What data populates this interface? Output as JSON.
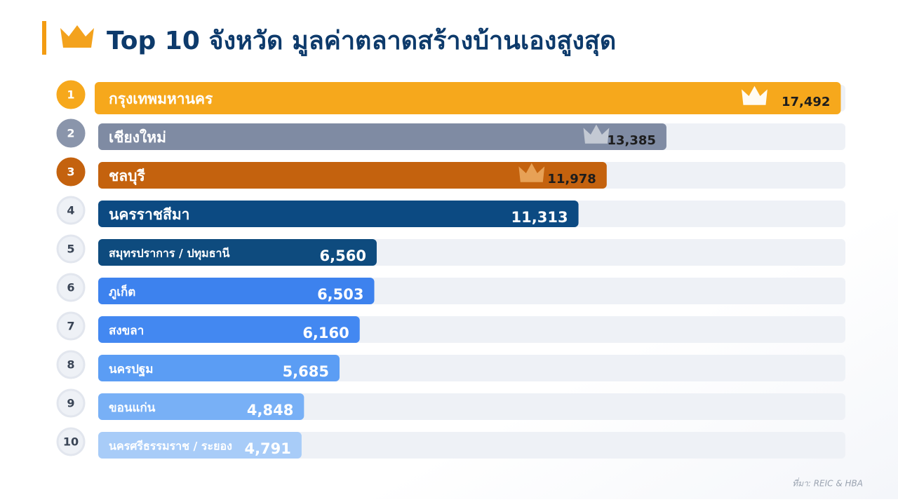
{
  "chart_data": {
    "type": "bar",
    "orientation": "horizontal",
    "title": "Top 10 จังหวัด มูลค่าตลาดสร้างบ้านเองสูงสุด",
    "ranks": [
      1,
      2,
      3,
      4,
      5,
      6,
      7,
      8,
      9,
      10
    ],
    "categories": [
      "กรุงเทพมหานคร",
      "เชียงใหม่",
      "ชลบุรี",
      "นครราชสีมา",
      "สมุทรปราการ / ปทุมธานี",
      "ภูเก็ต",
      "สงขลา",
      "นครปฐม",
      "ขอนแก่น",
      "นครศรีธรรมราช / ระยอง"
    ],
    "values": [
      17492,
      13385,
      11978,
      11313,
      6560,
      6503,
      6160,
      5685,
      4848,
      4791
    ],
    "value_labels": [
      "17,492",
      "13,385",
      "11,978",
      "11,313",
      "6,560",
      "6,503",
      "6,160",
      "5,685",
      "4,848",
      "4,791"
    ],
    "colors": [
      "#f6a81c",
      "#7f8ba3",
      "#c4620e",
      "#0c4a82",
      "#0e4b7e",
      "#3d82ee",
      "#4388f1",
      "#5b9df4",
      "#78b0f6",
      "#a8ccf8"
    ],
    "xlim": [
      0,
      17600
    ],
    "source": "ที่มา: REIC & HBA"
  }
}
